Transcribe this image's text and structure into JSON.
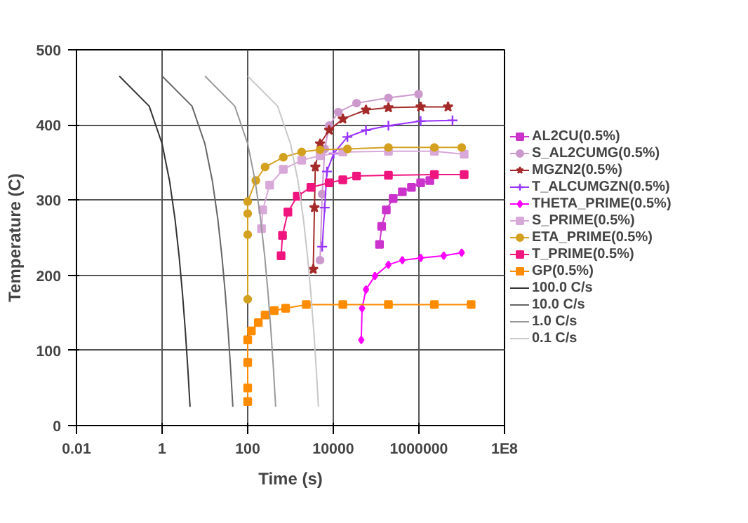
{
  "chart_data": {
    "type": "line",
    "xlabel": "Time (s)",
    "ylabel": "Temperature (C)",
    "log": "x",
    "grid": true,
    "legend": "right",
    "xlim": [
      0.01,
      100000000
    ],
    "ylim": [
      0,
      500
    ],
    "xticks": [
      0.01,
      1,
      100,
      10000,
      1000000,
      {
        "value": 100000000,
        "label": "1E8"
      }
    ],
    "yticks": [
      0,
      100,
      200,
      300,
      400,
      500
    ],
    "series": [
      {
        "name": "AL2CU(0.5%)",
        "color": "#cc33cc",
        "marker": "square",
        "x": [
          120000,
          135000,
          173000,
          250000,
          410000,
          670000,
          1100000,
          1800000
        ],
        "values": [
          241,
          265,
          287,
          302,
          311,
          317,
          323,
          326
        ]
      },
      {
        "name": "S_AL2CUMG(0.5%)",
        "color": "#cc99cc",
        "marker": "circle",
        "x": [
          4900,
          5500,
          6300,
          8000,
          13100,
          35000,
          194000,
          980000
        ],
        "values": [
          220,
          308,
          368,
          399,
          417,
          429,
          436,
          441
        ]
      },
      {
        "name": "MGZN2(0.5%)",
        "color": "#a52a2a",
        "marker": "star",
        "x": [
          3400,
          3630,
          3800,
          4900,
          8000,
          16700,
          58000,
          194000,
          1100000,
          4800000
        ],
        "values": [
          208,
          290,
          344,
          375,
          393,
          408,
          420,
          423,
          424,
          424
        ]
      },
      {
        "name": "T_ALCUMGZN(0.5%)",
        "color": "#9933ff",
        "marker": "cross",
        "x": [
          5500,
          6300,
          7100,
          10200,
          21400,
          58000,
          194000,
          1100000,
          6100000
        ],
        "values": [
          238,
          290,
          338,
          362,
          384,
          393,
          399,
          405,
          406
        ]
      },
      {
        "name": "THETA_PRIME(0.5%)",
        "color": "#ff00ff",
        "marker": "diamond",
        "x": [
          45000,
          47000,
          58000,
          94000,
          194000,
          410000,
          1100000,
          3800000,
          10000000
        ],
        "values": [
          114,
          156,
          181,
          199,
          214,
          220,
          223,
          226,
          230
        ]
      },
      {
        "name": "S_PRIME(0.5%)",
        "color": "#d8a8d8",
        "marker": "square",
        "x": [
          210,
          225,
          326,
          680,
          1830,
          4900,
          16700,
          194000,
          2300000,
          11400000
        ],
        "values": [
          262,
          287,
          320,
          341,
          353,
          359,
          364,
          365,
          365,
          361
        ]
      },
      {
        "name": "ETA_PRIME(0.5%)",
        "color": "#d4a020",
        "marker": "circle",
        "x": [
          100,
          100,
          100,
          100,
          155,
          255,
          680,
          1830,
          4900,
          21400,
          194000,
          2300000,
          10000000
        ],
        "values": [
          168,
          254,
          282,
          298,
          326,
          344,
          357,
          364,
          367,
          368,
          370,
          370,
          370
        ]
      },
      {
        "name": "T_PRIME(0.5%)",
        "color": "#f0147f",
        "marker": "square",
        "x": [
          604,
          650,
          870,
          1440,
          3000,
          8000,
          16700,
          35000,
          194000,
          2300000,
          11400000
        ],
        "values": [
          226,
          253,
          284,
          305,
          317,
          323,
          327,
          332,
          333,
          334,
          334
        ]
      },
      {
        "name": "GP(0.5%)",
        "color": "#ff8c00",
        "marker": "square",
        "x": [
          100,
          100,
          100,
          100,
          122,
          177,
          255,
          417,
          770,
          2340,
          16700,
          194000,
          2300000,
          16600000
        ],
        "values": [
          32,
          50,
          84,
          114,
          126,
          137,
          147,
          153,
          156,
          161,
          161,
          161,
          161,
          161
        ]
      },
      {
        "name": "100.0 C/s",
        "color": "#333333",
        "marker": "none",
        "x": [
          0.1,
          0.5,
          1,
          1.5,
          2,
          2.5,
          3,
          3.5,
          4,
          4.5
        ],
        "values": [
          465,
          425,
          375,
          325,
          275,
          225,
          175,
          125,
          75,
          25
        ]
      },
      {
        "name": "10.0 C/s",
        "color": "#666666",
        "marker": "none",
        "x": [
          1,
          5,
          10,
          15,
          20,
          25,
          30,
          35,
          40,
          45
        ],
        "values": [
          465,
          425,
          375,
          325,
          275,
          225,
          175,
          125,
          75,
          25
        ]
      },
      {
        "name": "1.0 C/s",
        "color": "#999999",
        "marker": "none",
        "x": [
          10,
          50,
          100,
          150,
          200,
          250,
          300,
          350,
          400,
          450
        ],
        "values": [
          465,
          425,
          375,
          325,
          275,
          225,
          175,
          125,
          75,
          25
        ]
      },
      {
        "name": "0.1 C/s",
        "color": "#c8c8c8",
        "marker": "none",
        "x": [
          100,
          500,
          1000,
          1500,
          2000,
          2500,
          3000,
          3500,
          4000,
          4500
        ],
        "values": [
          465,
          425,
          375,
          325,
          275,
          225,
          175,
          125,
          75,
          25
        ]
      }
    ]
  }
}
